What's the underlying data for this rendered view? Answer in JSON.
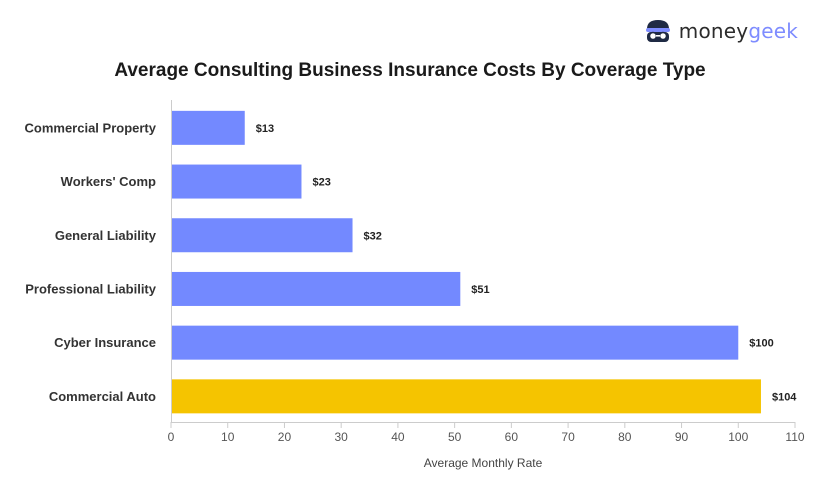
{
  "logo": {
    "brand_left": "money",
    "brand_right": "geek"
  },
  "chart_data": {
    "type": "bar",
    "orientation": "horizontal",
    "title": "Average Consulting Business Insurance Costs By Coverage Type",
    "xlabel": "Average Monthly Rate",
    "ylabel": "",
    "xlim": [
      0,
      110
    ],
    "x_ticks": [
      0,
      10,
      20,
      30,
      40,
      50,
      60,
      70,
      80,
      90,
      100,
      110
    ],
    "categories": [
      "Commercial Property",
      "Workers' Comp",
      "General Liability",
      "Professional Liability",
      "Cyber Insurance",
      "Commercial Auto"
    ],
    "values": [
      13,
      23,
      32,
      51,
      100,
      104
    ],
    "data_labels": [
      "$13",
      "$23",
      "$32",
      "$51",
      "$100",
      "$104"
    ],
    "bar_colors": [
      "#7389ff",
      "#7389ff",
      "#7389ff",
      "#7389ff",
      "#7389ff",
      "#f5c400"
    ],
    "grid": false,
    "legend": "none"
  }
}
